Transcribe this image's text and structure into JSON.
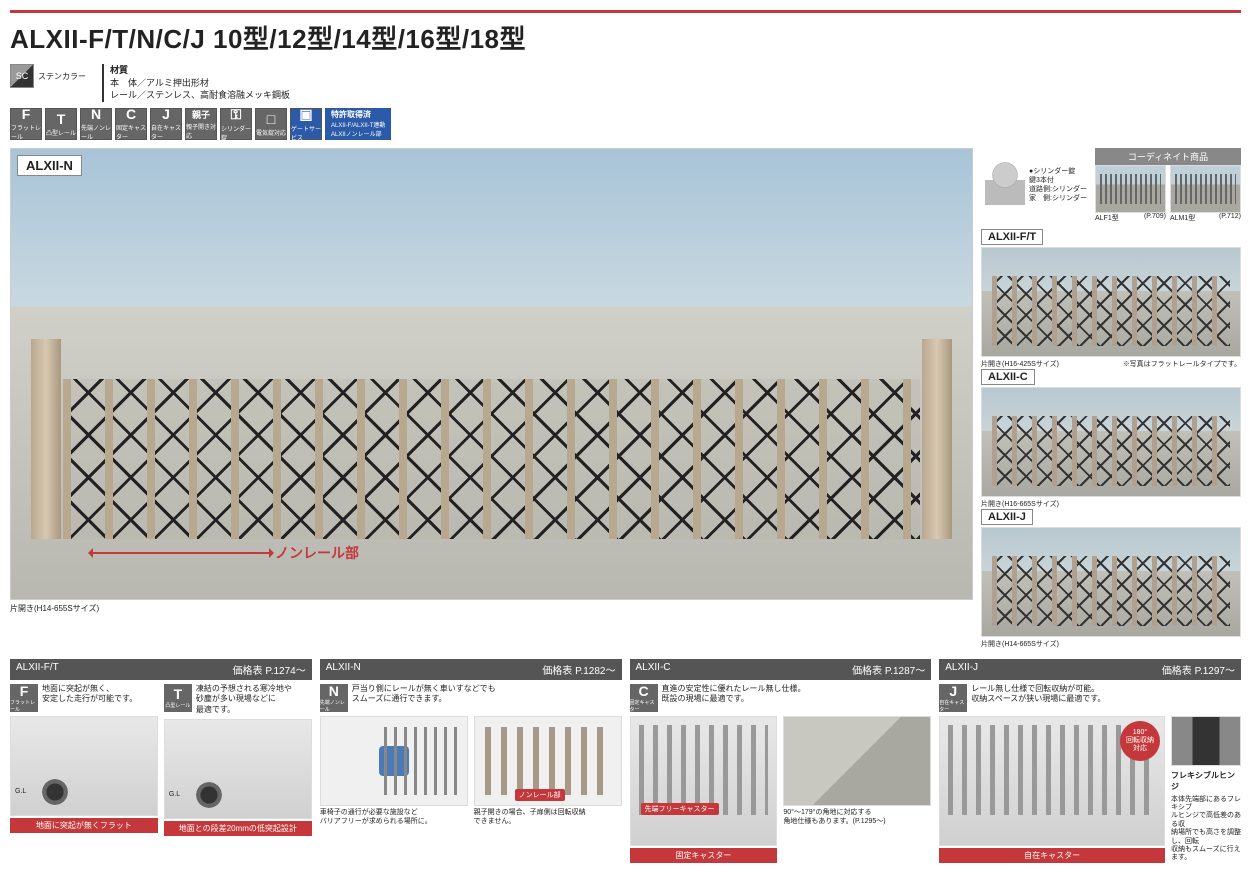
{
  "title": "ALXII-F/T/N/C/J 10型/12型/14型/16型/18型",
  "sc_label": "ステンカラー",
  "material": {
    "title": "材質",
    "line1": "本　体／アルミ押出形材",
    "line2": "レール／ステンレス、高耐食溶融メッキ鋼板"
  },
  "icons": [
    {
      "big": "F",
      "sub": "フラットレール",
      "code": "(ALXII-F)"
    },
    {
      "big": "T",
      "sub": "凸型レール",
      "code": "(ALXII-T)"
    },
    {
      "big": "N",
      "sub": "先端ノンレール",
      "code": "(ALXII-N)"
    },
    {
      "big": "C",
      "sub": "固定キャスター",
      "code": "(ALXII-C)"
    },
    {
      "big": "J",
      "sub": "自在キャスター",
      "code": "(ALXII-J)"
    },
    {
      "big": "親子",
      "sub": "親子開き対応",
      "code": ""
    },
    {
      "big": "⚿",
      "sub": "シリンダー錠",
      "code": ""
    },
    {
      "big": "□",
      "sub": "電気錠対応",
      "code": ""
    },
    {
      "big": "▣",
      "sub": "ゲートサービス",
      "code": "",
      "blue": true
    }
  ],
  "patent": {
    "title": "特許取得済",
    "sub": "ALXII-F/ALXII-T連動\nALXIIノンレール部"
  },
  "hero": {
    "label": "ALXII-N",
    "arrow_text": "ノンレール部",
    "caption": "片開き(H14-655Sサイズ)"
  },
  "coord": {
    "header": "コーディネイト商品",
    "key_text": "●シリンダー錠\n鍵3本付\n道路側:シリンダー\n家　側:シリンダー",
    "items": [
      {
        "name": "ALF1型",
        "page": "(P.709)"
      },
      {
        "name": "ALM1型",
        "page": "(P.712)"
      }
    ]
  },
  "thumbs": [
    {
      "label": "ALXII-F/T",
      "cap_l": "片開き(H16-425Sサイズ)",
      "cap_r": "※写真はフラットレールタイプです。"
    },
    {
      "label": "ALXII-C",
      "cap_l": "片開き(H16-665Sサイズ)",
      "cap_r": ""
    },
    {
      "label": "ALXII-J",
      "cap_l": "片開き(H14-665Sサイズ)",
      "cap_r": ""
    }
  ],
  "sections": {
    "ft": {
      "head": "ALXII-F/T",
      "price": "価格表 P.1274～",
      "f": {
        "icon": "F",
        "icon_sub": "フラットレール",
        "desc": "地面に突起が無く、\n安定した走行が可能です。",
        "tag": "地面に突起が無くフラット"
      },
      "t": {
        "icon": "T",
        "icon_sub": "凸型レール",
        "desc": "凍結の予想される寒冷地や\n砂塵が多い現場などに\n最適です。",
        "tag": "地面との段差20mmの低突起設計"
      }
    },
    "n": {
      "head": "ALXII-N",
      "price": "価格表 P.1282～",
      "icon": "N",
      "icon_sub": "先端ノンレール",
      "desc": "戸当り側にレールが無く車いすなどでも\nスムーズに通行できます。",
      "note1": "車椅子の通行が必要な施設など\nバリアフリーが求められる場所に。",
      "note2": "親子開きの場合、子扉側は回転収納\nできません。",
      "arrow": "ノンレール部"
    },
    "c": {
      "head": "ALXII-C",
      "price": "価格表 P.1287～",
      "icon": "C",
      "icon_sub": "固定キャスター",
      "desc": "直進の安定性に優れたレール無し仕様。\n既設の現場に最適です。",
      "corner_note": "90°～179°の角地に対応する\n角地仕様もあります。(P.1295～)",
      "callout": "先端フリーキャスター",
      "tag": "固定キャスター"
    },
    "j": {
      "head": "ALXII-J",
      "price": "価格表 P.1297～",
      "icon": "J",
      "icon_sub": "自在キャスター",
      "desc": "レール無し仕様で回転収納が可能。\n収納スペースが狭い現場に最適です。",
      "badge": "180°\n回転収納\n対応",
      "tag": "自在キャスター",
      "side_title": "フレキシブルヒンジ",
      "side_text": "本体先端部にあるフレキシブ\nルヒンジで高低差のある収\n納場所でも高さを調整し、回転\n収納もスムーズに行えます。"
    }
  }
}
